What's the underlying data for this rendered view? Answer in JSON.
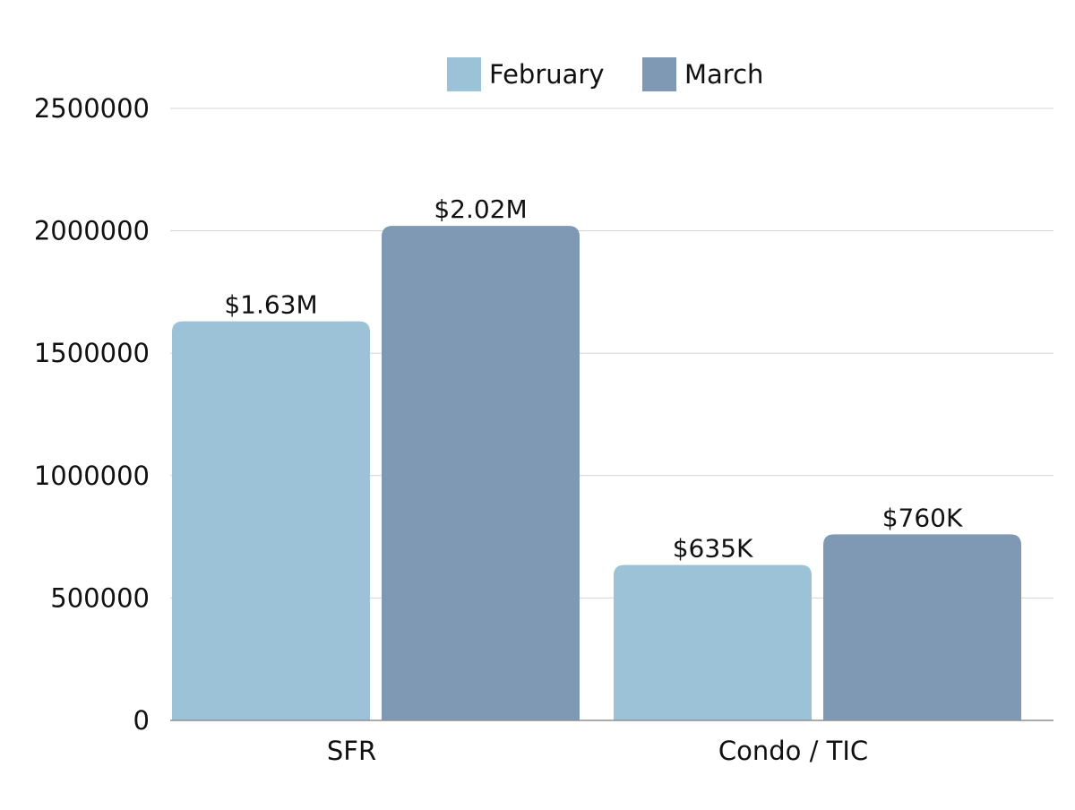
{
  "chart_data": {
    "type": "bar",
    "categories": [
      "SFR",
      "Condo / TIC"
    ],
    "series": [
      {
        "name": "February",
        "color": "#9bc2d7",
        "values": [
          1630000,
          635000
        ],
        "labels": [
          "$1.63M",
          "$635K"
        ]
      },
      {
        "name": "March",
        "color": "#7f98b4",
        "values": [
          2020000,
          760000
        ],
        "labels": [
          "$2.02M",
          "$760K"
        ]
      }
    ],
    "yticks": [
      0,
      500000,
      1000000,
      1500000,
      2000000,
      2500000
    ],
    "ylim": [
      0,
      2500000
    ],
    "grid": true,
    "legend_position": "top-center",
    "title": "",
    "xlabel": "",
    "ylabel": ""
  }
}
